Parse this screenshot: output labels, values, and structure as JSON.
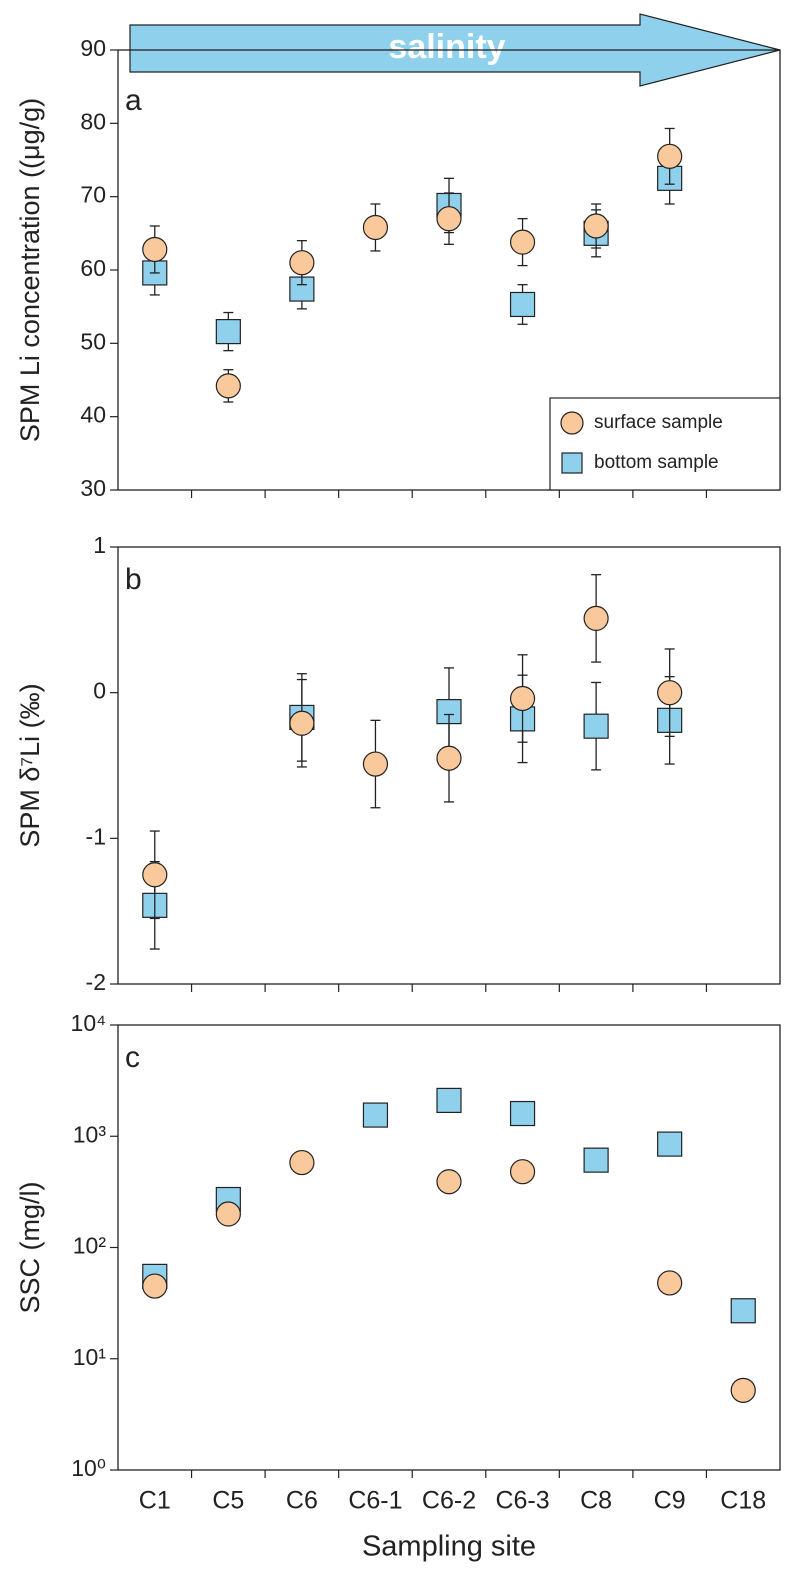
{
  "chart_data": [
    {
      "type": "scatter",
      "panel_label": "a",
      "arrow_text": "salinity",
      "ylabel": "SPM Li concentration ((μg/g)",
      "ylim": [
        30,
        90
      ],
      "yticks": [
        30,
        40,
        50,
        60,
        70,
        80,
        90
      ],
      "legend": "lower right",
      "series": [
        {
          "name": "surface sample",
          "marker": "circle",
          "color": "#f9c89b",
          "values": [
            62.8,
            44.2,
            61,
            65.8,
            67,
            63.8,
            66,
            75.5,
            null
          ],
          "errors": [
            3.2,
            2.2,
            3,
            3.2,
            3.5,
            3.2,
            3,
            3.8,
            null
          ]
        },
        {
          "name": "bottom sample",
          "marker": "square",
          "color": "#8fd0ec",
          "values": [
            59.6,
            51.6,
            57.4,
            null,
            68.8,
            55.3,
            65,
            72.5,
            null
          ],
          "errors": [
            3,
            2.6,
            2.7,
            null,
            3.7,
            2.7,
            3.2,
            3.5,
            null
          ]
        }
      ]
    },
    {
      "type": "scatter",
      "panel_label": "b",
      "ylabel": "SPM δ⁷Li (‰)",
      "ylim": [
        -2,
        1
      ],
      "yticks": [
        -2,
        -1,
        0,
        1
      ],
      "series": [
        {
          "name": "surface sample",
          "marker": "circle",
          "color": "#f9c89b",
          "values": [
            -1.25,
            null,
            -0.21,
            -0.49,
            -0.45,
            -0.04,
            0.51,
            0.0,
            null
          ],
          "errors": [
            0.3,
            null,
            0.3,
            0.3,
            0.3,
            0.3,
            0.3,
            0.3,
            null
          ]
        },
        {
          "name": "bottom sample",
          "marker": "square",
          "color": "#8fd0ec",
          "values": [
            -1.46,
            null,
            -0.17,
            null,
            -0.13,
            -0.18,
            -0.23,
            -0.19,
            null
          ],
          "errors": [
            0.3,
            null,
            0.3,
            null,
            0.3,
            0.3,
            0.3,
            0.3,
            null
          ]
        }
      ]
    },
    {
      "type": "scatter",
      "panel_label": "c",
      "ylabel": "SSC (mg/l)",
      "xlabel": "Sampling site",
      "log_scale": true,
      "categories": [
        "C1",
        "C5",
        "C6",
        "C6-1",
        "C6-2",
        "C6-3",
        "C8",
        "C9",
        "C18"
      ],
      "ylim": [
        1,
        10000
      ],
      "yticks": [
        {
          "value": 1,
          "label": "10⁰"
        },
        {
          "value": 10,
          "label": "10¹"
        },
        {
          "value": 100,
          "label": "10²"
        },
        {
          "value": 1000,
          "label": "10³"
        },
        {
          "value": 10000,
          "label": "10⁴"
        }
      ],
      "series": [
        {
          "name": "surface sample",
          "marker": "circle",
          "color": "#f9c89b",
          "values": [
            45,
            200,
            580,
            null,
            390,
            480,
            null,
            48,
            5.2
          ]
        },
        {
          "name": "bottom sample",
          "marker": "square",
          "color": "#8fd0ec",
          "values": [
            55,
            270,
            null,
            1550,
            2100,
            1600,
            610,
            850,
            27
          ]
        }
      ]
    }
  ]
}
